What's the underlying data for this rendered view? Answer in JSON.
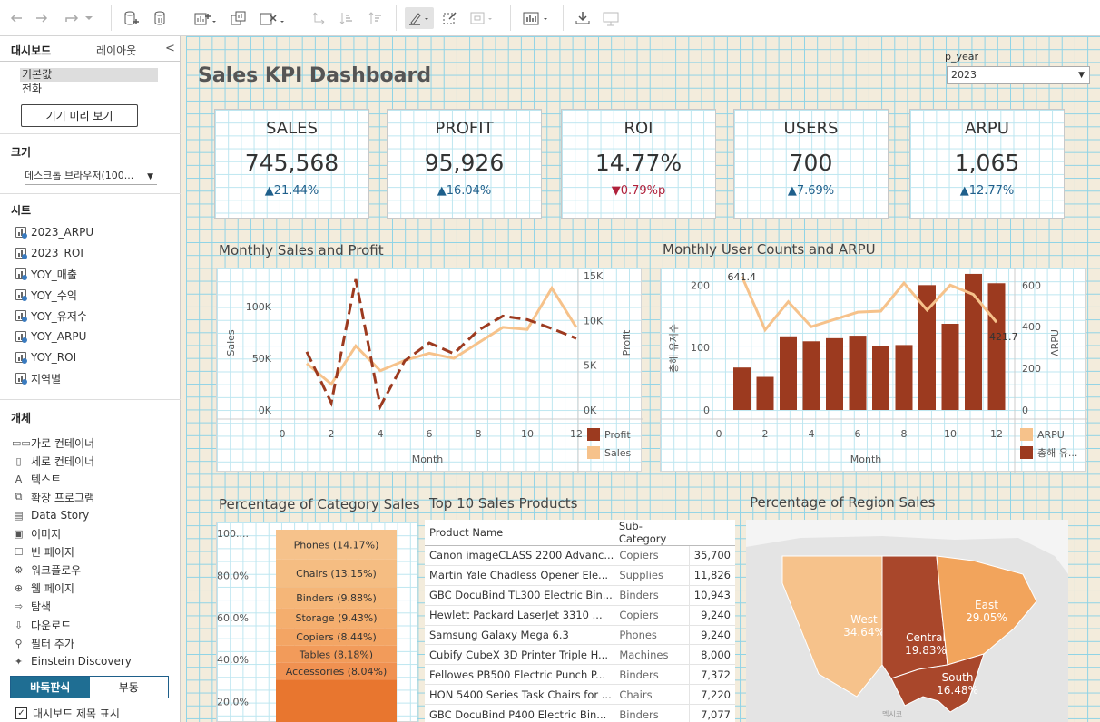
{
  "left_panel": {
    "tabs": {
      "dashboard": "대시보드",
      "layout": "레이아웃",
      "collapse": "<"
    },
    "devices": [
      "기본값",
      "전화"
    ],
    "device_preview_button": "기기 미리 보기",
    "size": {
      "header": "크기",
      "value": "데스크톱 브라우저(100..."
    },
    "sheets": {
      "header": "시트",
      "items": [
        "2023_ARPU",
        "2023_ROI",
        "YOY_매출",
        "YOY_수익",
        "YOY_유저수",
        "YOY_ARPU",
        "YOY_ROI",
        "지역별"
      ]
    },
    "objects": {
      "header": "개체",
      "items": [
        {
          "label": "가로 컨테이너",
          "icon": "horizontal-container-icon",
          "glyph": "▭▭"
        },
        {
          "label": "세로 컨테이너",
          "icon": "vertical-container-icon",
          "glyph": "▯"
        },
        {
          "label": "텍스트",
          "icon": "text-icon",
          "glyph": "A"
        },
        {
          "label": "확장 프로그램",
          "icon": "extension-icon",
          "glyph": "⧉"
        },
        {
          "label": "Data Story",
          "icon": "data-story-icon",
          "glyph": "▤"
        },
        {
          "label": "이미지",
          "icon": "image-icon",
          "glyph": "▣"
        },
        {
          "label": "빈 페이지",
          "icon": "blank-icon",
          "glyph": "☐"
        },
        {
          "label": "워크플로우",
          "icon": "workflow-icon",
          "glyph": "⚙"
        },
        {
          "label": "웹 페이지",
          "icon": "web-page-icon",
          "glyph": "⊕"
        },
        {
          "label": "탐색",
          "icon": "navigation-icon",
          "glyph": "⇨"
        },
        {
          "label": "다운로드",
          "icon": "download-icon",
          "glyph": "⇩"
        },
        {
          "label": "필터 추가",
          "icon": "filter-icon",
          "glyph": "⚲"
        },
        {
          "label": "Einstein Discovery",
          "icon": "einstein-icon",
          "glyph": "✦"
        }
      ]
    },
    "layout_toggle": {
      "tiled": "바둑판식",
      "floating": "부동"
    },
    "show_title": {
      "label": "대시보드 제목 표시",
      "check": "✓"
    }
  },
  "dashboard": {
    "title": "Sales KPI Dashboard",
    "parameter": {
      "label": "p_year",
      "value": "2023"
    },
    "kpis": [
      {
        "label": "SALES",
        "value": "745,568",
        "change": "▲21.44%",
        "direction": "up"
      },
      {
        "label": "PROFIT",
        "value": "95,926",
        "change": "▲16.04%",
        "direction": "up"
      },
      {
        "label": "ROI",
        "value": "14.77%",
        "change": "▼0.79%p",
        "direction": "down"
      },
      {
        "label": "USERS",
        "value": "700",
        "change": "▲7.69%",
        "direction": "up"
      },
      {
        "label": "ARPU",
        "value": "1,065",
        "change": "▲12.77%",
        "direction": "up"
      }
    ],
    "sheet_titles": {
      "monthly_sales": "Monthly Sales and Profit",
      "monthly_users": "Monthly User Counts and ARPU",
      "category": "Percentage of Category Sales",
      "top10": "Top 10 Sales Products",
      "region": "Percentage of Region Sales"
    },
    "top10": {
      "headers": [
        "Product Name",
        "Sub-Category",
        ""
      ],
      "rows": [
        [
          "Canon imageCLASS 2200 Advanc...",
          "Copiers",
          "35,700"
        ],
        [
          "Martin Yale Chadless Opener Ele...",
          "Supplies",
          "11,826"
        ],
        [
          "GBC DocuBind TL300 Electric Bin...",
          "Binders",
          "10,943"
        ],
        [
          "Hewlett Packard LaserJet 3310 ...",
          "Copiers",
          "9,240"
        ],
        [
          "Samsung Galaxy Mega 6.3",
          "Phones",
          "9,240"
        ],
        [
          "Cubify CubeX 3D Printer Triple H...",
          "Machines",
          "8,000"
        ],
        [
          "Fellowes PB500 Electric Punch P...",
          "Binders",
          "7,372"
        ],
        [
          "HON 5400 Series Task Chairs for ...",
          "Chairs",
          "7,220"
        ],
        [
          "GBC DocuBind P400 Electric Bin...",
          "Binders",
          "7,077"
        ]
      ]
    },
    "map_watermark": "멕시코"
  },
  "chart_data": [
    {
      "type": "line",
      "title": "Monthly Sales and Profit",
      "xlabel": "Month",
      "ylabel": "Sales",
      "y2label": "Profit",
      "x": [
        1,
        2,
        3,
        4,
        5,
        6,
        7,
        8,
        9,
        10,
        11,
        12
      ],
      "xticks": [
        "0",
        "2",
        "4",
        "6",
        "8",
        "10",
        "12"
      ],
      "yticks": [
        "0K",
        "50K",
        "100K"
      ],
      "y2ticks": [
        "0K",
        "5K",
        "10K",
        "15K"
      ],
      "ylim": [
        0,
        130000
      ],
      "y2lim": [
        0,
        15000
      ],
      "series": [
        {
          "name": "Sales",
          "axis": "left",
          "color": "#f6c28b",
          "values": [
            45000,
            25000,
            62000,
            38000,
            48000,
            55000,
            50000,
            65000,
            80000,
            78000,
            118000,
            80000
          ]
        },
        {
          "name": "Profit",
          "axis": "right",
          "color": "#9c3a1f",
          "dashed": true,
          "values": [
            6500,
            800,
            14600,
            400,
            5500,
            7500,
            6300,
            8900,
            10500,
            10100,
            9100,
            8000
          ]
        }
      ],
      "legend": [
        "Profit",
        "Sales"
      ]
    },
    {
      "type": "bar",
      "title": "Monthly User Counts and ARPU",
      "xlabel": "Month",
      "ylabel": "총해 유저수",
      "y2label": "ARPU",
      "x": [
        1,
        2,
        3,
        4,
        5,
        6,
        7,
        8,
        9,
        10,
        11,
        12
      ],
      "xticks": [
        "0",
        "2",
        "4",
        "6",
        "8",
        "10",
        "12"
      ],
      "yticks": [
        "0",
        "100",
        "200"
      ],
      "y2ticks": [
        "0",
        "200",
        "400",
        "600"
      ],
      "ylim": [
        0,
        215
      ],
      "y2lim": [
        0,
        645
      ],
      "series": [
        {
          "name": "총해 유...",
          "axis": "left",
          "color": "#9c3a1f",
          "values": [
            68,
            53,
            118,
            110,
            115,
            119,
            103,
            104,
            200,
            138,
            218,
            203
          ]
        },
        {
          "name": "ARPU",
          "axis": "right",
          "color": "#f6c28b",
          "values": [
            641.4,
            385,
            520,
            400,
            435,
            470,
            475,
            610,
            480,
            600,
            555,
            421.7
          ]
        }
      ],
      "annotations": [
        "641.4",
        "421.7"
      ],
      "legend": [
        "ARPU",
        "총해 유..."
      ]
    },
    {
      "type": "bar",
      "title": "Percentage of Category Sales",
      "orientation": "stacked-percent",
      "yticks": [
        "100....",
        "80.0%",
        "60.0%",
        "40.0%",
        "20.0%"
      ],
      "categories": [
        "Phones",
        "Chairs",
        "Binders",
        "Storage",
        "Copiers",
        "Tables",
        "Accessories"
      ],
      "values": [
        14.17,
        13.15,
        9.88,
        9.43,
        8.44,
        8.18,
        8.04
      ],
      "labels": [
        "Phones (14.17%)",
        "Chairs (13.15%)",
        "Binders (9.88%)",
        "Storage (9.43%)",
        "Copiers (8.44%)",
        "Tables (8.18%)",
        "Accessories (8.04%)"
      ]
    },
    {
      "type": "map",
      "title": "Percentage of Region Sales",
      "categories": [
        "West",
        "Central",
        "East",
        "South"
      ],
      "values": [
        34.64,
        19.83,
        29.05,
        16.48
      ],
      "labels": [
        "West\n34.64%",
        "Central\n19.83%",
        "East\n29.05%",
        "South\n16.48%"
      ]
    }
  ]
}
